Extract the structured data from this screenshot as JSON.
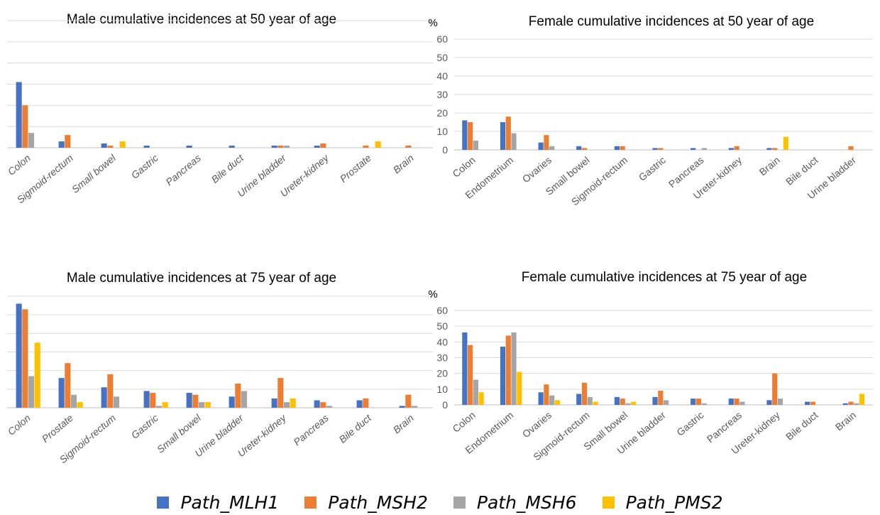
{
  "series_colors": [
    "#4472C4",
    "#ED7D31",
    "#A5A5A5",
    "#FFC000"
  ],
  "legend": [
    "Path_MLH1",
    "Path_MSH2",
    "Path_MSH6",
    "Path_PMS2"
  ],
  "chart_data": [
    {
      "type": "bar",
      "title": "Male cumulative incidences at 50 year of age",
      "ylabel": "",
      "ylim": [
        0,
        60
      ],
      "y_ticks_shown": false,
      "categories": [
        "Colon",
        "Sigmoid-rectum",
        "Small bowel",
        "Gastric",
        "Pancreas",
        "Bile duct",
        "Urine bladder",
        "Ureter-kidney",
        "Prostate",
        "Brain"
      ],
      "series": [
        {
          "name": "Path_MLH1",
          "values": [
            31,
            3,
            2,
            1,
            1,
            1,
            1,
            1,
            0,
            0
          ]
        },
        {
          "name": "Path_MSH2",
          "values": [
            20,
            6,
            1,
            0,
            0,
            0,
            1,
            2,
            1,
            1
          ]
        },
        {
          "name": "Path_MSH6",
          "values": [
            7,
            0,
            0,
            0,
            0,
            0,
            1,
            0,
            0,
            0
          ]
        },
        {
          "name": "Path_PMS2",
          "values": [
            0,
            0,
            3,
            0,
            0,
            0,
            0,
            0,
            3,
            0
          ]
        }
      ]
    },
    {
      "type": "bar",
      "title": "Female cumulative incidences at 50 year of age",
      "ylabel": "%",
      "ylim": [
        0,
        60
      ],
      "y_ticks": [
        "0",
        "10",
        "20",
        "30",
        "40",
        "50",
        "60"
      ],
      "y_ticks_shown": true,
      "categories": [
        "Colon",
        "Endometrium",
        "Ovaries",
        "Small bowel",
        "Sigmoid-rectum",
        "Gastric",
        "Pancreas",
        "Ureter-kidney",
        "Brain",
        "Bile duct",
        "Urine bladder"
      ],
      "series": [
        {
          "name": "Path_MLH1",
          "values": [
            16,
            15,
            4,
            2,
            2,
            1,
            1,
            1,
            1,
            0,
            0
          ]
        },
        {
          "name": "Path_MSH2",
          "values": [
            15,
            18,
            8,
            1,
            2,
            1,
            0,
            2,
            1,
            0,
            2
          ]
        },
        {
          "name": "Path_MSH6",
          "values": [
            5,
            9,
            2,
            0,
            0,
            0,
            1,
            0,
            0,
            0,
            0
          ]
        },
        {
          "name": "Path_PMS2",
          "values": [
            0,
            0,
            0,
            0,
            0,
            0,
            0,
            0,
            7,
            0,
            0
          ]
        }
      ]
    },
    {
      "type": "bar",
      "title": "Male cumulative incidences at 75 year of age",
      "ylabel": "",
      "ylim": [
        0,
        60
      ],
      "y_ticks_shown": false,
      "categories": [
        "Colon",
        "Prostate",
        "Sigmoid-rectum",
        "Gastric",
        "Small bowel",
        "Urine bladder",
        "Ureter-kidney",
        "Pancreas",
        "Bile duct",
        "Brain"
      ],
      "series": [
        {
          "name": "Path_MLH1",
          "values": [
            56,
            16,
            11,
            9,
            8,
            6,
            5,
            4,
            4,
            1
          ]
        },
        {
          "name": "Path_MSH2",
          "values": [
            53,
            24,
            18,
            8,
            7,
            13,
            16,
            3,
            5,
            7
          ]
        },
        {
          "name": "Path_MSH6",
          "values": [
            17,
            7,
            6,
            1,
            3,
            9,
            3,
            1,
            0,
            1
          ]
        },
        {
          "name": "Path_PMS2",
          "values": [
            35,
            3,
            0,
            3,
            3,
            0,
            5,
            0,
            0,
            0
          ]
        }
      ]
    },
    {
      "type": "bar",
      "title": "Female cumulative incidences at 75 year of age",
      "ylabel": "%",
      "ylim": [
        0,
        60
      ],
      "y_ticks": [
        "0",
        "10",
        "20",
        "30",
        "40",
        "50",
        "60"
      ],
      "y_ticks_shown": true,
      "categories": [
        "Colon",
        "Endometrium",
        "Ovaries",
        "Sigmoid-rectum",
        "Small bowel",
        "Urine bladder",
        "Gastric",
        "Pancreas",
        "Ureter-kidney",
        "Bile duct",
        "Brain"
      ],
      "series": [
        {
          "name": "Path_MLH1",
          "values": [
            46,
            37,
            8,
            7,
            5,
            5,
            4,
            4,
            3,
            2,
            1
          ]
        },
        {
          "name": "Path_MSH2",
          "values": [
            38,
            44,
            13,
            14,
            4,
            9,
            4,
            4,
            20,
            2,
            2
          ]
        },
        {
          "name": "Path_MSH6",
          "values": [
            16,
            46,
            6,
            5,
            1,
            3,
            1,
            2,
            4,
            0,
            1
          ]
        },
        {
          "name": "Path_PMS2",
          "values": [
            8,
            21,
            3,
            2,
            2,
            0,
            0,
            0,
            0,
            0,
            7
          ]
        }
      ]
    }
  ]
}
